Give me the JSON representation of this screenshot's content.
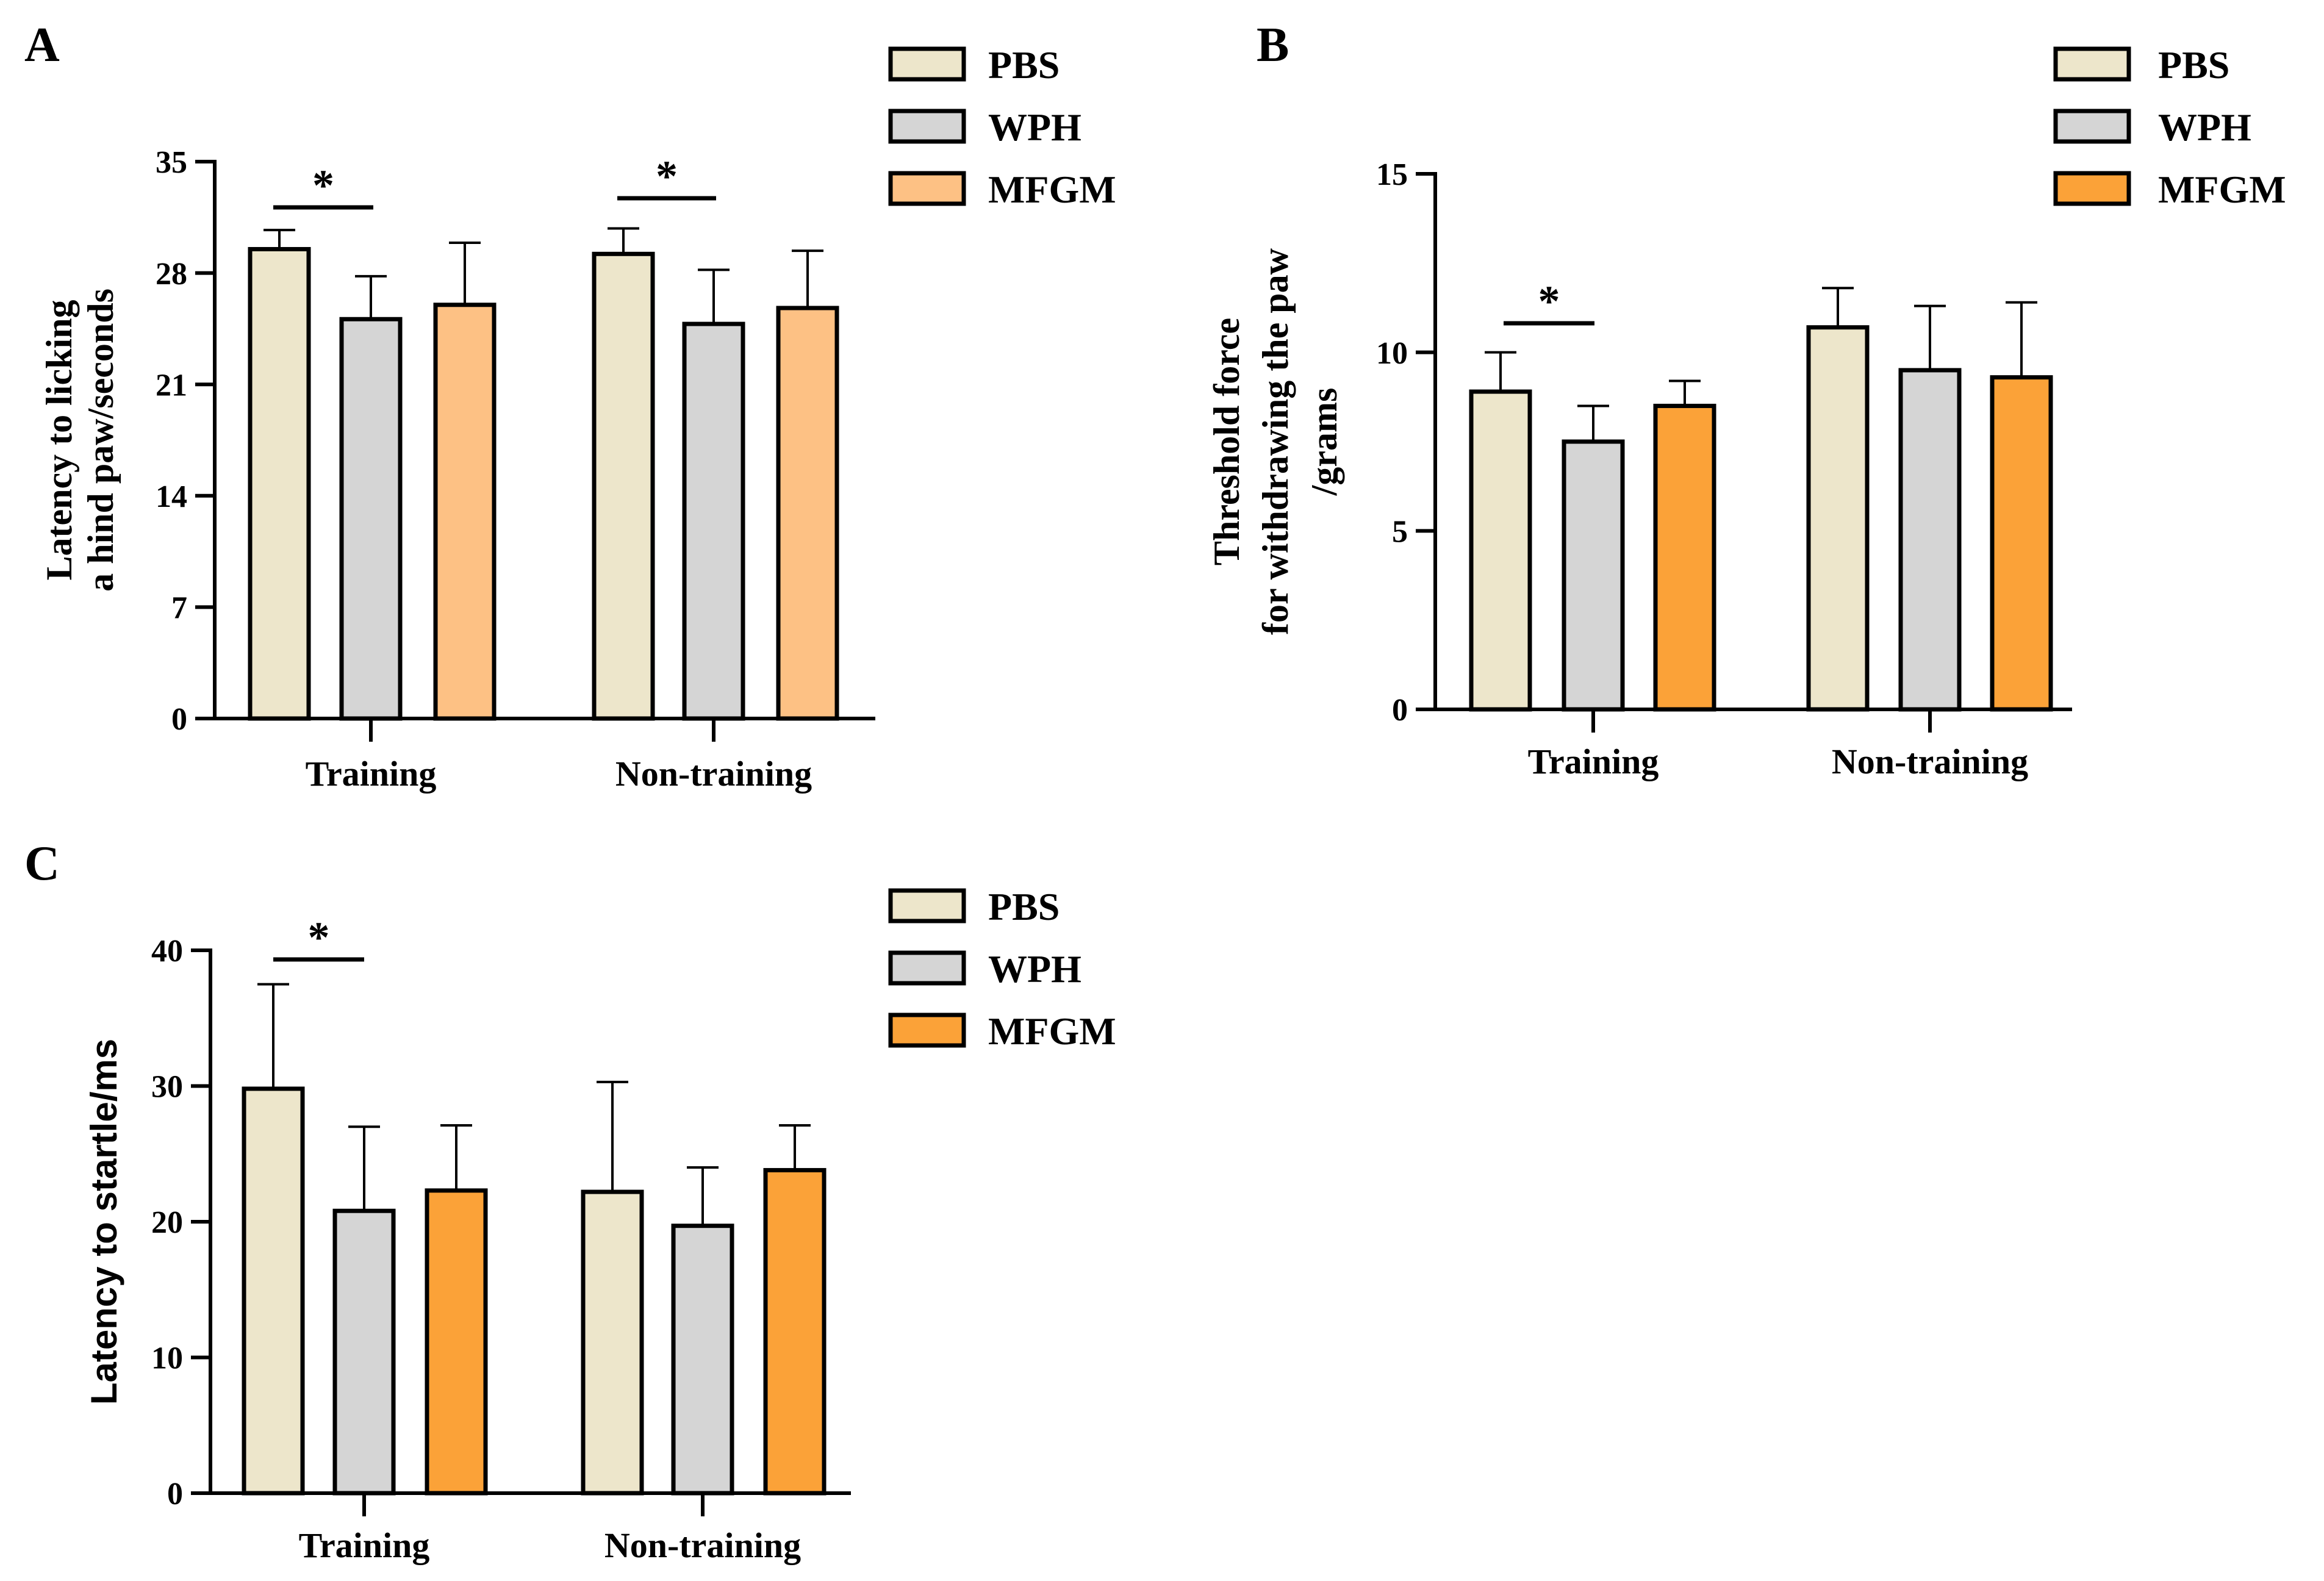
{
  "chart_data": [
    {
      "panel_label": "A",
      "type": "bar",
      "categories": [
        "Training",
        "Non-training"
      ],
      "series": [
        {
          "name": "PBS",
          "values": [
            29.5,
            29.2
          ],
          "errors": [
            1.2,
            1.6
          ]
        },
        {
          "name": "WPH",
          "values": [
            25.1,
            24.8
          ],
          "errors": [
            2.7,
            3.4
          ]
        },
        {
          "name": "MFGM",
          "values": [
            26.0,
            25.8
          ],
          "errors": [
            3.9,
            3.6
          ]
        }
      ],
      "ylabel_lines": [
        "Latency to licking",
        "a hind paw/seconds"
      ],
      "ylim": [
        0,
        35
      ],
      "yticks": [
        0,
        7,
        14,
        21,
        28,
        35
      ],
      "significance": [
        {
          "category": "Training",
          "from": "PBS",
          "to": "WPH",
          "label": "*"
        },
        {
          "category": "Non-training",
          "from": "PBS",
          "to": "WPH",
          "label": "*"
        }
      ],
      "legend_position": "top-right",
      "grid": false,
      "colors": {
        "PBS": "#ede6cb",
        "WPH": "#d5d5d5",
        "MFGM": "#fdc184"
      }
    },
    {
      "panel_label": "B",
      "type": "bar",
      "categories": [
        "Training",
        "Non-training"
      ],
      "series": [
        {
          "name": "PBS",
          "values": [
            8.9,
            10.7
          ],
          "errors": [
            1.1,
            1.1
          ]
        },
        {
          "name": "WPH",
          "values": [
            7.5,
            9.5
          ],
          "errors": [
            1.0,
            1.8
          ]
        },
        {
          "name": "MFGM",
          "values": [
            8.5,
            9.3
          ],
          "errors": [
            0.7,
            2.1
          ]
        }
      ],
      "ylabel_lines": [
        "Threshold force",
        "for withdrawing the paw",
        "/grams"
      ],
      "ylim": [
        0,
        15
      ],
      "yticks": [
        0,
        5,
        10,
        15
      ],
      "significance": [
        {
          "category": "Training",
          "from": "PBS",
          "to": "WPH",
          "label": "*"
        }
      ],
      "legend_position": "top-right",
      "grid": false,
      "colors": {
        "PBS": "#ede6cb",
        "WPH": "#d5d5d5",
        "MFGM": "#fba238"
      }
    },
    {
      "panel_label": "C",
      "type": "bar",
      "categories": [
        "Training",
        "Non-training"
      ],
      "series": [
        {
          "name": "PBS",
          "values": [
            29.8,
            22.2
          ],
          "errors": [
            7.7,
            8.1
          ]
        },
        {
          "name": "WPH",
          "values": [
            20.8,
            19.7
          ],
          "errors": [
            6.2,
            4.3
          ]
        },
        {
          "name": "MFGM",
          "values": [
            22.3,
            23.8
          ],
          "errors": [
            4.8,
            3.3
          ]
        }
      ],
      "ylabel_lines": [
        "Latency to startle/ms"
      ],
      "ylim": [
        0,
        40
      ],
      "yticks": [
        0,
        10,
        20,
        30,
        40
      ],
      "significance": [
        {
          "category": "Training",
          "from": "PBS",
          "to": "WPH",
          "label": "*"
        }
      ],
      "legend_position": "top-right",
      "grid": false,
      "colors": {
        "PBS": "#ede6cb",
        "WPH": "#d5d5d5",
        "MFGM": "#fba238"
      }
    }
  ]
}
